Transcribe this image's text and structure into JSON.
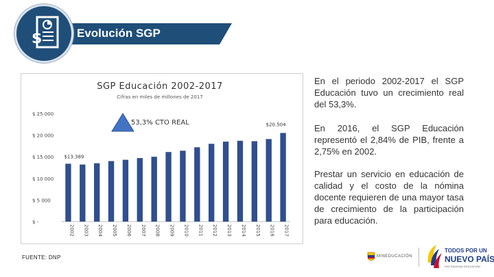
{
  "header": {
    "title": "Evolución SGP"
  },
  "icons": {
    "header_icon": "document-money-icon",
    "mined_seal": "coat-of-arms-icon",
    "todos_logo": "todos-por-un-nuevo-pais-logo"
  },
  "colors": {
    "header_bg": "#1f4e79",
    "bar": "#2f4f8f",
    "triangle": "#4472c4"
  },
  "chart_data": {
    "type": "bar",
    "title": "SGP Educación 2002-2017",
    "subtitle": "Cifras en miles de millones de 2017",
    "categories": [
      "2002",
      "2003",
      "2004",
      "2005",
      "2006",
      "2007",
      "2008",
      "2009",
      "2010",
      "2011",
      "2012",
      "2013",
      "2014",
      "2015",
      "2016",
      "2017"
    ],
    "values": [
      13389,
      13200,
      13500,
      14000,
      14300,
      14700,
      15000,
      16100,
      16400,
      17200,
      18000,
      18500,
      18700,
      18600,
      19100,
      20504
    ],
    "ylim": [
      0,
      25000
    ],
    "y_ticks": [
      0,
      5000,
      10000,
      15000,
      20000,
      25000
    ],
    "y_tick_labels": [
      "$ -",
      "$ 5 000",
      "$ 10 000",
      "$ 15 000",
      "$ 20 000",
      "$ 25 000"
    ],
    "data_labels": [
      {
        "category": "2002",
        "text": "$13.389"
      },
      {
        "category": "2017",
        "text": "$20.504"
      }
    ],
    "annotation": "53,3% CTO REAL",
    "grid": false,
    "legend": "none"
  },
  "paragraphs": [
    "En el periodo 2002-2017 el SGP Educación tuvo un crecimiento real del 53,3%.",
    "En 2016, el SGP Educación representó el 2,84% de PIB, frente a 2,75% en 2002.",
    "Prestar un servicio en educación de calidad y el costo de la nómina docente requieren de una mayor tasa de crecimiento de la participación para educación."
  ],
  "source": "FUENTE: DNP",
  "footer": {
    "mined": "MINEDUCACIÓN",
    "todos_line1": "TODOS POR UN",
    "todos_line2": "NUEVO PAÍS",
    "todos_line3": "PAZ  EQUIDAD  EDUCACIÓN"
  }
}
